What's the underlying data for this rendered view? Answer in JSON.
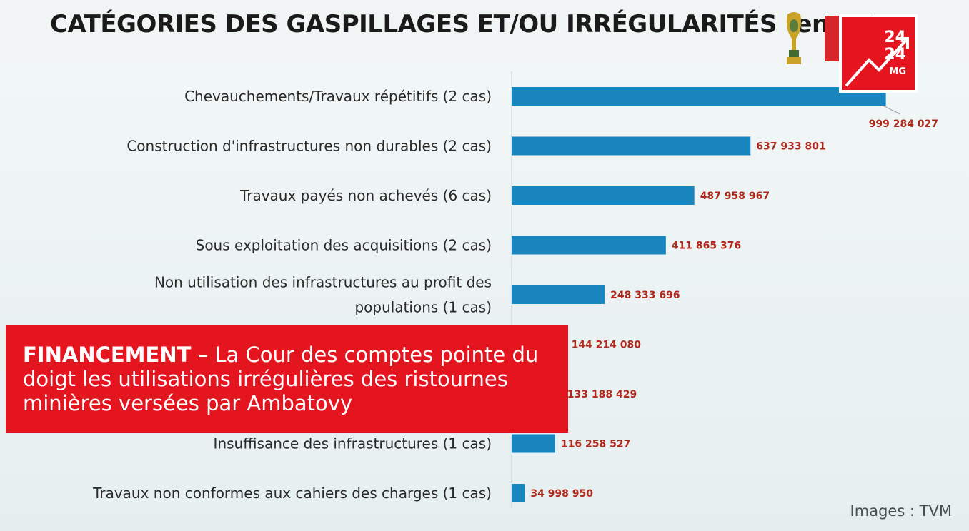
{
  "chart_data": {
    "type": "bar",
    "orientation": "horizontal",
    "title": "CATÉGORIES DES GASPILLAGES ET/OU IRRÉGULARITÉS (en Ar)",
    "xlabel": "",
    "ylabel": "",
    "grid": false,
    "categories": [
      [
        "Chevauchements/Travaux répétitifs (2 cas)"
      ],
      [
        "Construction d'infrastructures non durables (2 cas)"
      ],
      [
        "Travaux payés non achevés (6 cas)"
      ],
      [
        "Sous exploitation des acquisitions (2 cas)"
      ],
      [
        "Non utilisation des infrastructures au profit des",
        "populations (1 cas)"
      ],
      [
        ""
      ],
      [
        ""
      ],
      [
        "Insuffisance des infrastructures (1 cas)"
      ],
      [
        "Travaux non conformes aux cahiers des charges (1 cas)"
      ]
    ],
    "values": [
      999284027,
      637933801,
      487958967,
      411865376,
      248333696,
      144214080,
      133188429,
      116258527,
      34998950
    ],
    "value_labels": [
      "999 284 027",
      "637 933 801",
      "487 958 967",
      "411 865 376",
      "248 333 696",
      "144 214 080",
      "133 188 429",
      "116 258 527",
      "34 998 950"
    ],
    "xlim": [
      0,
      1000000000
    ],
    "colors": {
      "bar": "#1a86bf",
      "value_label": "#b0281b"
    }
  },
  "logo": {
    "line1": "24",
    "line2": "24",
    "line3": "MG"
  },
  "banner": {
    "tag": "FINANCEMENT",
    "text": " – La Cour des comptes pointe du doigt les utilisations irrégulières des ristournes minières versées par Ambatovy"
  },
  "credit": "Images : TVM",
  "colors": {
    "banner": "#e4151f",
    "logo": "#e4151f"
  }
}
